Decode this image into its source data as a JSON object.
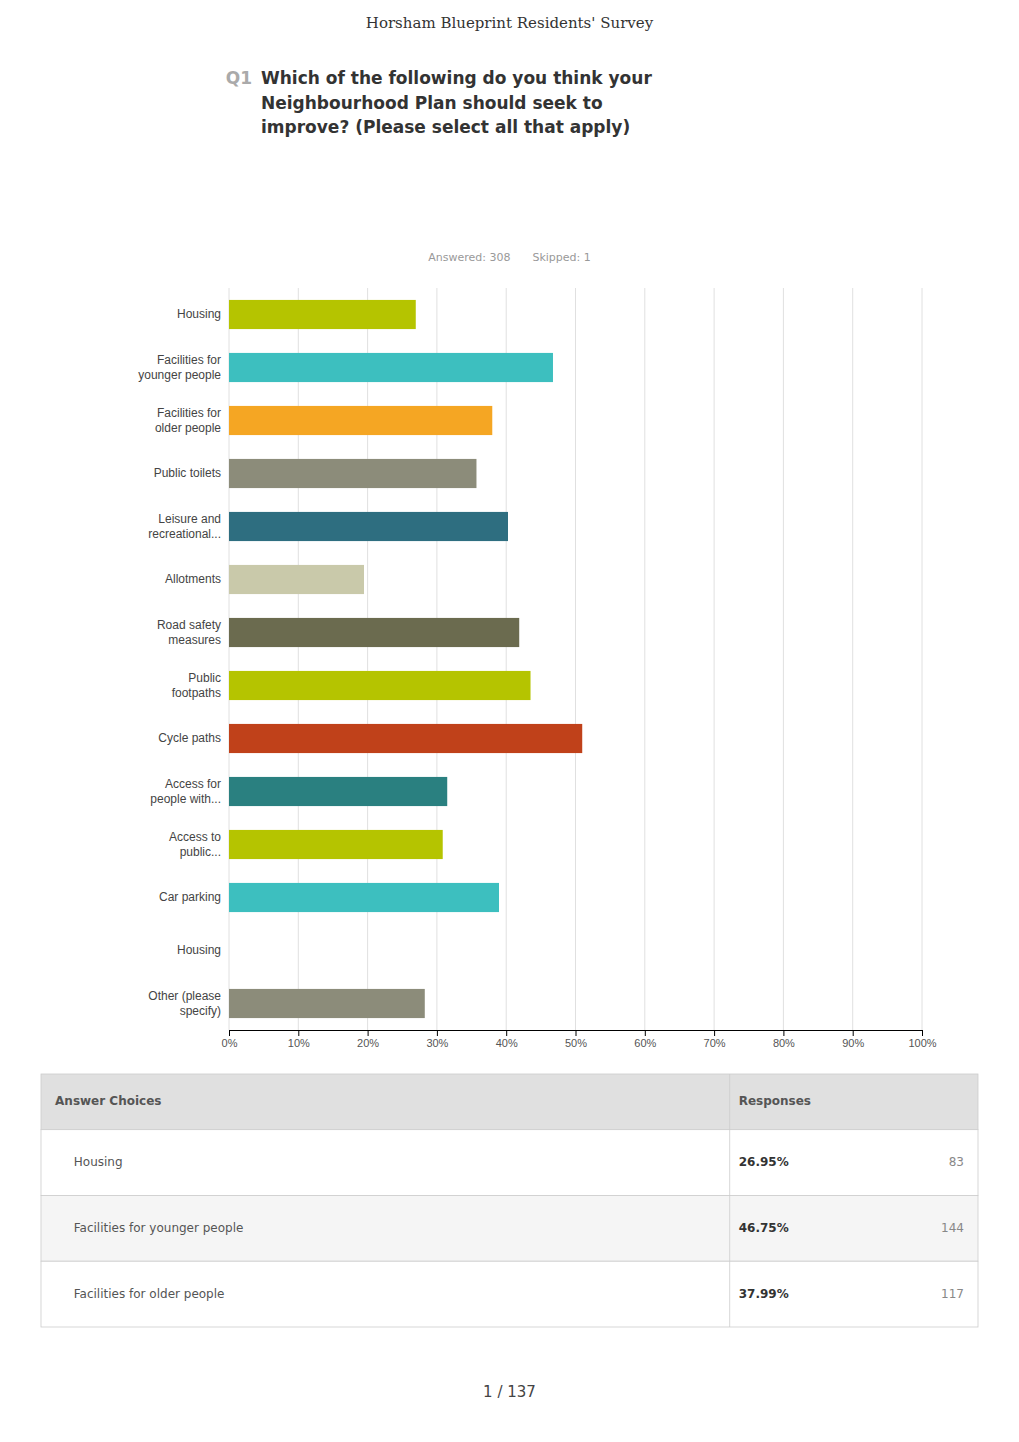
{
  "header": "Horsham Blueprint Residents' Survey",
  "question": {
    "number": "Q1",
    "text": "Which of the following do you think your\nNeighbourhood Plan should seek to\nimprove?  (Please select all that apply)"
  },
  "answered": "Answered: 308",
  "skipped": "Skipped: 1",
  "chart_data": {
    "type": "bar",
    "orientation": "horizontal",
    "categories": [
      "Housing",
      "Facilities for\nyounger people",
      "Facilities for\nolder people",
      "Public toilets",
      "Leisure and\nrecreational...",
      "Allotments",
      "Road safety\nmeasures",
      "Public\nfootpaths",
      "Cycle paths",
      "Access for\npeople with...",
      "Access to\npublic...",
      "Car parking",
      "Housing",
      "Other (please\nspecify)"
    ],
    "values": [
      26.95,
      46.75,
      37.99,
      35.71,
      40.26,
      19.48,
      41.88,
      43.51,
      50.97,
      31.49,
      30.84,
      38.96,
      0.0,
      28.25
    ],
    "colors": [
      "#b5c400",
      "#3dbfbf",
      "#f5a623",
      "#8c8c7a",
      "#2e6e80",
      "#c9c9aa",
      "#6b6b4f",
      "#b5c400",
      "#c0411a",
      "#2a8080",
      "#b5c400",
      "#3dbfbf",
      "#b5c400",
      "#8c8c7a"
    ],
    "xlim": [
      0,
      100
    ],
    "xticks": [
      {
        "value": 0,
        "label": "0%"
      },
      {
        "value": 10,
        "label": "10%"
      },
      {
        "value": 20,
        "label": "20%"
      },
      {
        "value": 30,
        "label": "30%"
      },
      {
        "value": 40,
        "label": "40%"
      },
      {
        "value": 50,
        "label": "50%"
      },
      {
        "value": 60,
        "label": "60%"
      },
      {
        "value": 70,
        "label": "70%"
      },
      {
        "value": 80,
        "label": "80%"
      },
      {
        "value": 90,
        "label": "90%"
      },
      {
        "value": 100,
        "label": "100%"
      }
    ],
    "grid": true
  },
  "table": {
    "columns": [
      "Answer Choices",
      "Responses"
    ],
    "rows": [
      {
        "choice": "Housing",
        "pct": "26.95%",
        "count": "83"
      },
      {
        "choice": "Facilities for younger people",
        "pct": "46.75%",
        "count": "144"
      },
      {
        "choice": "Facilities for older people",
        "pct": "37.99%",
        "count": "117"
      }
    ]
  },
  "page_label": "1 / 137"
}
